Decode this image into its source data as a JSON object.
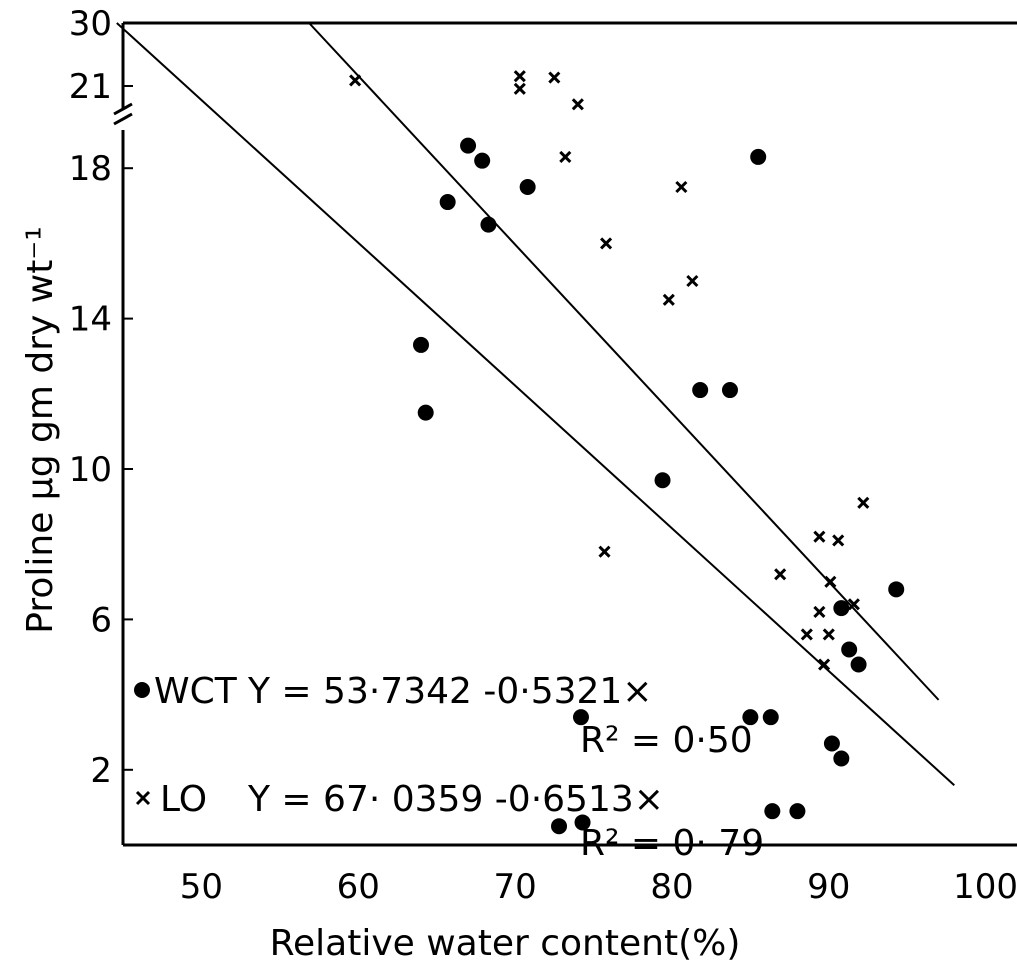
{
  "chart_data": {
    "type": "scatter",
    "title": "",
    "xlabel": "Relative water content(%)",
    "ylabel": "Proline µg gm dry wt⁻¹",
    "xlim": [
      45,
      102
    ],
    "ylim": [
      0,
      30
    ],
    "grid": false,
    "x_ticks": [
      {
        "value": 50,
        "label": "50"
      },
      {
        "value": 60,
        "label": "60"
      },
      {
        "value": 70,
        "label": "70"
      },
      {
        "value": 80,
        "label": "80"
      },
      {
        "value": 90,
        "label": "90"
      },
      {
        "value": 100,
        "label": "100"
      }
    ],
    "y_ticks": [
      {
        "value": 2,
        "label": "2"
      },
      {
        "value": 6,
        "label": "6"
      },
      {
        "value": 10,
        "label": "10"
      },
      {
        "value": 14,
        "label": "14"
      },
      {
        "value": 18,
        "label": "18"
      },
      {
        "value": 21,
        "label": "21"
      },
      {
        "value": 30,
        "label": "30"
      }
    ],
    "axis_break": "between 21 and 18",
    "series": [
      {
        "name": "WCT",
        "marker": "filled-circle",
        "color": "#000000",
        "equation": "Y = 53·7342 -0·5321×",
        "r2": "R² = 0·50",
        "fit": {
          "intercept": 53.7342,
          "slope": -0.5321
        },
        "points": [
          [
            64.0,
            13.3
          ],
          [
            64.3,
            11.5
          ],
          [
            65.7,
            17.1
          ],
          [
            67.0,
            18.6
          ],
          [
            67.9,
            18.2
          ],
          [
            68.3,
            16.5
          ],
          [
            70.8,
            17.5
          ],
          [
            79.4,
            9.7
          ],
          [
            81.8,
            12.1
          ],
          [
            83.7,
            12.1
          ],
          [
            85.5,
            18.3
          ],
          [
            94.3,
            6.8
          ],
          [
            90.8,
            6.3
          ],
          [
            91.3,
            5.2
          ],
          [
            91.9,
            4.8
          ],
          [
            74.2,
            3.4
          ],
          [
            85.0,
            3.4
          ],
          [
            86.3,
            3.4
          ],
          [
            90.2,
            2.7
          ],
          [
            90.8,
            2.3
          ],
          [
            72.8,
            0.5
          ],
          [
            74.3,
            0.6
          ],
          [
            86.4,
            0.9
          ],
          [
            88.0,
            0.9
          ]
        ]
      },
      {
        "name": "LO",
        "marker": "cross",
        "color": "#000000",
        "equation": "Y = 67· 0359 -0·6513×",
        "r2": "R² = 0· 79",
        "fit": {
          "intercept": 67.0359,
          "slope": -0.6513
        },
        "points": [
          [
            59.8,
            21.8
          ],
          [
            70.3,
            22.4
          ],
          [
            70.3,
            20.6
          ],
          [
            72.5,
            22.2
          ],
          [
            74.0,
            19.7
          ],
          [
            73.2,
            18.3
          ],
          [
            80.6,
            17.5
          ],
          [
            75.8,
            16.0
          ],
          [
            81.3,
            15.0
          ],
          [
            79.8,
            14.5
          ],
          [
            75.7,
            7.8
          ],
          [
            92.2,
            9.1
          ],
          [
            89.4,
            8.2
          ],
          [
            90.6,
            8.1
          ],
          [
            86.9,
            7.2
          ],
          [
            90.1,
            7.0
          ],
          [
            89.4,
            6.2
          ],
          [
            91.6,
            6.4
          ],
          [
            88.6,
            5.6
          ],
          [
            90.0,
            5.6
          ],
          [
            89.7,
            4.8
          ]
        ]
      }
    ]
  }
}
